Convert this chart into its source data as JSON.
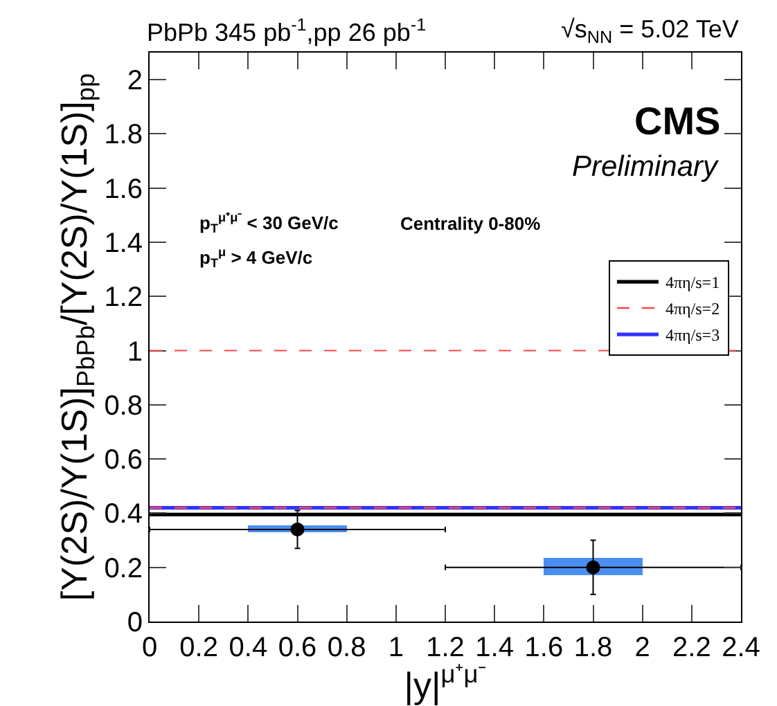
{
  "chart_data": {
    "type": "scatter",
    "title": "PbPb 345 pb$^{-1}$,pp 26 pb$^{-1}$",
    "subtitle": "√s$_{NN}$ = 5.02 TeV",
    "xlabel": "|y|$^{μ⁺μ⁻}$",
    "ylabel": "[Υ(2S)/Υ(1S)]$_{PbPb}$/[Υ(2S)/Υ(1S)]$_{pp}$",
    "xlim": [
      0,
      2.4
    ],
    "xticks": [
      0,
      0.2,
      0.4,
      0.6,
      0.8,
      1,
      1.2,
      1.4,
      1.6,
      1.8,
      2,
      2.2,
      2.4
    ],
    "ylim": [
      0,
      2.1
    ],
    "yticks": [
      0,
      0.2,
      0.4,
      0.6,
      0.8,
      1,
      1.2,
      1.4,
      1.6,
      1.8,
      2
    ],
    "grid": false,
    "legend": "right",
    "series": [
      {
        "type": "line",
        "name": "4πη/s=1",
        "color": "#000000",
        "line_style": "solid",
        "marker": "none",
        "x": [
          0,
          2.4
        ],
        "values": [
          0.395,
          0.395
        ]
      },
      {
        "type": "line",
        "name": "4πη/s=2",
        "color": "#ff4444",
        "line_style": "dashed",
        "marker": "none",
        "x": [
          0,
          2.4
        ],
        "values": [
          0.42,
          0.42
        ]
      },
      {
        "type": "line",
        "name": "4πη/s=3",
        "color": "#3333ff",
        "line_style": "solid",
        "marker": "none",
        "x": [
          0,
          2.4
        ],
        "values": [
          0.42,
          0.42
        ]
      },
      {
        "type": "bar",
        "color": "#4a8ef0",
        "x": [
          0.6,
          1.8
        ],
        "base": [
          0.33,
          0.17
        ],
        "values": [
          0.025,
          0.065
        ]
      },
      {
        "color": "#000000",
        "marker": "circle",
        "x": [
          0.6,
          1.8
        ],
        "values": [
          0.34,
          0.2
        ],
        "errors": [
          [
            0.27,
            0.41
          ],
          [
            0.1,
            0.3
          ]
        ],
        "xerrors": [
          [
            0,
            1.2
          ],
          [
            1.2,
            2.4
          ]
        ]
      }
    ],
    "ref_lines": [
      {
        "axis": "y",
        "value": 1,
        "color": "#ff4444",
        "line_style": "dashed"
      }
    ],
    "annotations": [
      "CMS",
      "Preliminary",
      "p$_{T}$$^{μ⁺μ⁻}$ < 30 GeV/c",
      "p$_{T}$$^{μ}$ > 4 GeV/c",
      "Centrality 0-80%"
    ]
  }
}
